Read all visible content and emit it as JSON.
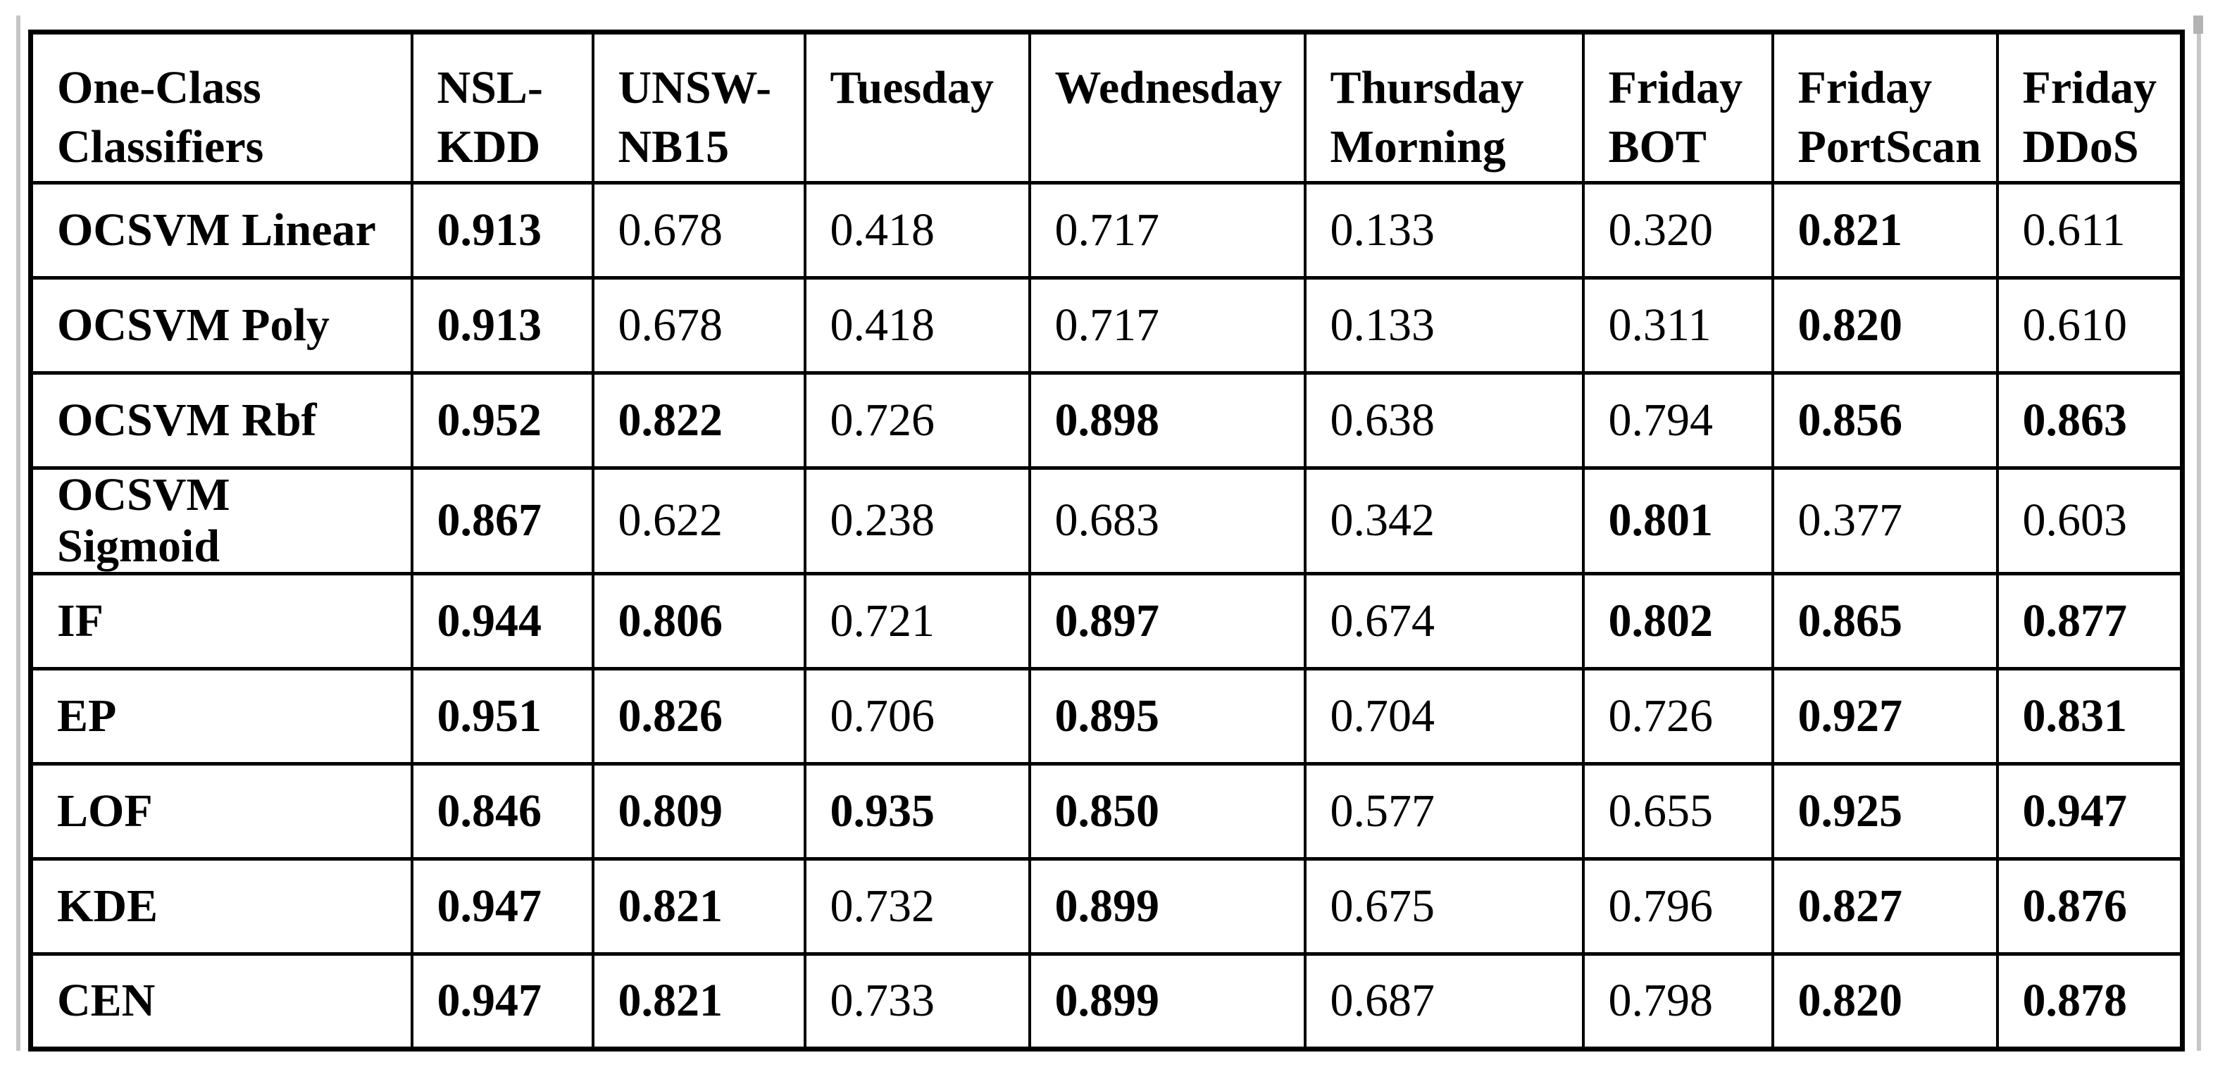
{
  "page": {
    "background": "#ffffff",
    "edge_line_color": "#c6c6c6",
    "scroll_thumb_color": "#b3b3b3",
    "text_color": "#000000",
    "border_color": "#000000"
  },
  "table": {
    "columns": [
      {
        "label": "One-Class Classifiers"
      },
      {
        "label": "NSL-KDD"
      },
      {
        "label": "UNSW-NB15"
      },
      {
        "label": "Tuesday"
      },
      {
        "label": "Wednesday"
      },
      {
        "label": "Thursday Morning"
      },
      {
        "label": "Friday BOT"
      },
      {
        "label": "Friday PortScan"
      },
      {
        "label": "Friday DDoS"
      }
    ],
    "rows": [
      {
        "label": "OCSVM Linear",
        "values": [
          "0.913",
          "0.678",
          "0.418",
          "0.717",
          "0.133",
          "0.320",
          "0.821",
          "0.611"
        ],
        "bold": [
          true,
          false,
          false,
          false,
          false,
          false,
          true,
          false
        ]
      },
      {
        "label": "OCSVM Poly",
        "values": [
          "0.913",
          "0.678",
          "0.418",
          "0.717",
          "0.133",
          "0.311",
          "0.820",
          "0.610"
        ],
        "bold": [
          true,
          false,
          false,
          false,
          false,
          false,
          true,
          false
        ]
      },
      {
        "label": "OCSVM Rbf",
        "values": [
          "0.952",
          "0.822",
          "0.726",
          "0.898",
          "0.638",
          "0.794",
          "0.856",
          "0.863"
        ],
        "bold": [
          true,
          true,
          false,
          true,
          false,
          false,
          true,
          true
        ]
      },
      {
        "label": "OCSVM Sigmoid",
        "values": [
          "0.867",
          "0.622",
          "0.238",
          "0.683",
          "0.342",
          "0.801",
          "0.377",
          "0.603"
        ],
        "bold": [
          true,
          false,
          false,
          false,
          false,
          true,
          false,
          false
        ]
      },
      {
        "label": "IF",
        "values": [
          "0.944",
          "0.806",
          "0.721",
          "0.897",
          "0.674",
          "0.802",
          "0.865",
          "0.877"
        ],
        "bold": [
          true,
          true,
          false,
          true,
          false,
          true,
          true,
          true
        ]
      },
      {
        "label": "EP",
        "values": [
          "0.951",
          "0.826",
          "0.706",
          "0.895",
          "0.704",
          "0.726",
          "0.927",
          "0.831"
        ],
        "bold": [
          true,
          true,
          false,
          true,
          false,
          false,
          true,
          true
        ]
      },
      {
        "label": "LOF",
        "values": [
          "0.846",
          "0.809",
          "0.935",
          "0.850",
          "0.577",
          "0.655",
          "0.925",
          "0.947"
        ],
        "bold": [
          true,
          true,
          true,
          true,
          false,
          false,
          true,
          true
        ]
      },
      {
        "label": "KDE",
        "values": [
          "0.947",
          "0.821",
          "0.732",
          "0.899",
          "0.675",
          "0.796",
          "0.827",
          "0.876"
        ],
        "bold": [
          true,
          true,
          false,
          true,
          false,
          false,
          true,
          true
        ]
      },
      {
        "label": "CEN",
        "values": [
          "0.947",
          "0.821",
          "0.733",
          "0.899",
          "0.687",
          "0.798",
          "0.820",
          "0.878"
        ],
        "bold": [
          true,
          true,
          false,
          true,
          false,
          false,
          true,
          true
        ]
      }
    ]
  }
}
